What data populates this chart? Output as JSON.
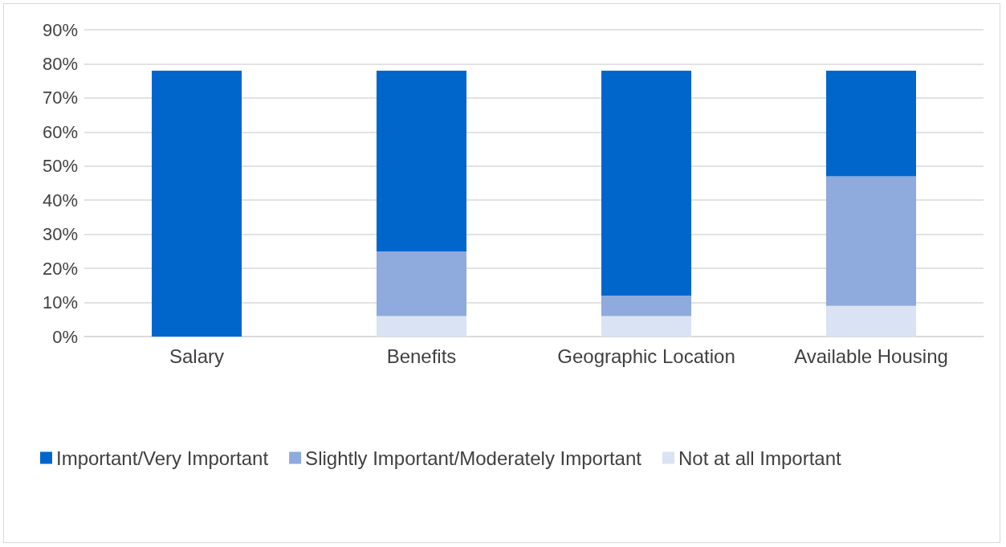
{
  "chart_data": {
    "type": "bar",
    "stacked": true,
    "categories": [
      "Salary",
      "Benefits",
      "Geographic Location",
      "Available Housing"
    ],
    "series": [
      {
        "name": "Not at all Important",
        "color": "#dae3f3",
        "values": [
          0,
          6,
          6,
          9
        ]
      },
      {
        "name": "Slightly Important/Moderately Important",
        "color": "#8faadc",
        "values": [
          0,
          19,
          6,
          38
        ]
      },
      {
        "name": "Important/Very Important",
        "color": "#0066cc",
        "values": [
          78,
          53,
          66,
          31
        ]
      }
    ],
    "ylim": [
      0,
      90
    ],
    "yticks": [
      {
        "value": 0,
        "label": "0%"
      },
      {
        "value": 10,
        "label": "10%"
      },
      {
        "value": 20,
        "label": "20%"
      },
      {
        "value": 30,
        "label": "30%"
      },
      {
        "value": 40,
        "label": "40%"
      },
      {
        "value": 50,
        "label": "50%"
      },
      {
        "value": 60,
        "label": "60%"
      },
      {
        "value": 70,
        "label": "70%"
      },
      {
        "value": 80,
        "label": "80%"
      },
      {
        "value": 90,
        "label": "90%"
      }
    ],
    "grid": "y",
    "legend": "bottom"
  }
}
